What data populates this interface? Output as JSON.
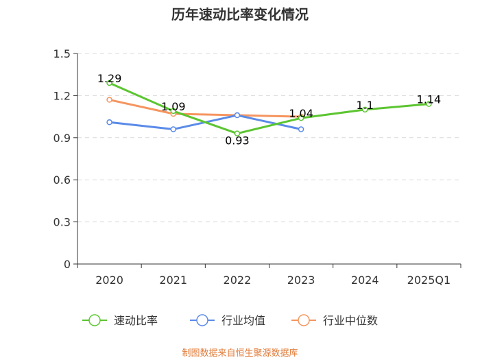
{
  "chart_data": {
    "type": "line",
    "title": "历年速动比率变化情况",
    "categories": [
      "2020",
      "2021",
      "2022",
      "2023",
      "2024",
      "2025Q1"
    ],
    "ylim": [
      0,
      1.5
    ],
    "yticks": [
      "0",
      "0.3",
      "0.6",
      "0.9",
      "1.2",
      "1.5"
    ],
    "ytick_values": [
      0,
      0.3,
      0.6,
      0.9,
      1.2,
      1.5
    ],
    "grid": true,
    "legend_position": "bottom",
    "series": [
      {
        "name": "速动比率",
        "color": "#5cc531",
        "values": [
          1.29,
          1.09,
          0.93,
          1.04,
          1.1,
          1.14
        ],
        "labels": [
          "1.29",
          "1.09",
          "0.93",
          "1.04",
          "1.1",
          "1.14"
        ]
      },
      {
        "name": "行业均值",
        "color": "#5b8be8",
        "values": [
          1.01,
          0.96,
          1.06,
          0.96,
          null,
          null
        ]
      },
      {
        "name": "行业中位数",
        "color": "#f5955f",
        "values": [
          1.17,
          1.07,
          1.06,
          1.05,
          null,
          null
        ]
      }
    ],
    "source": "制图数据来自恒生聚源数据库"
  }
}
